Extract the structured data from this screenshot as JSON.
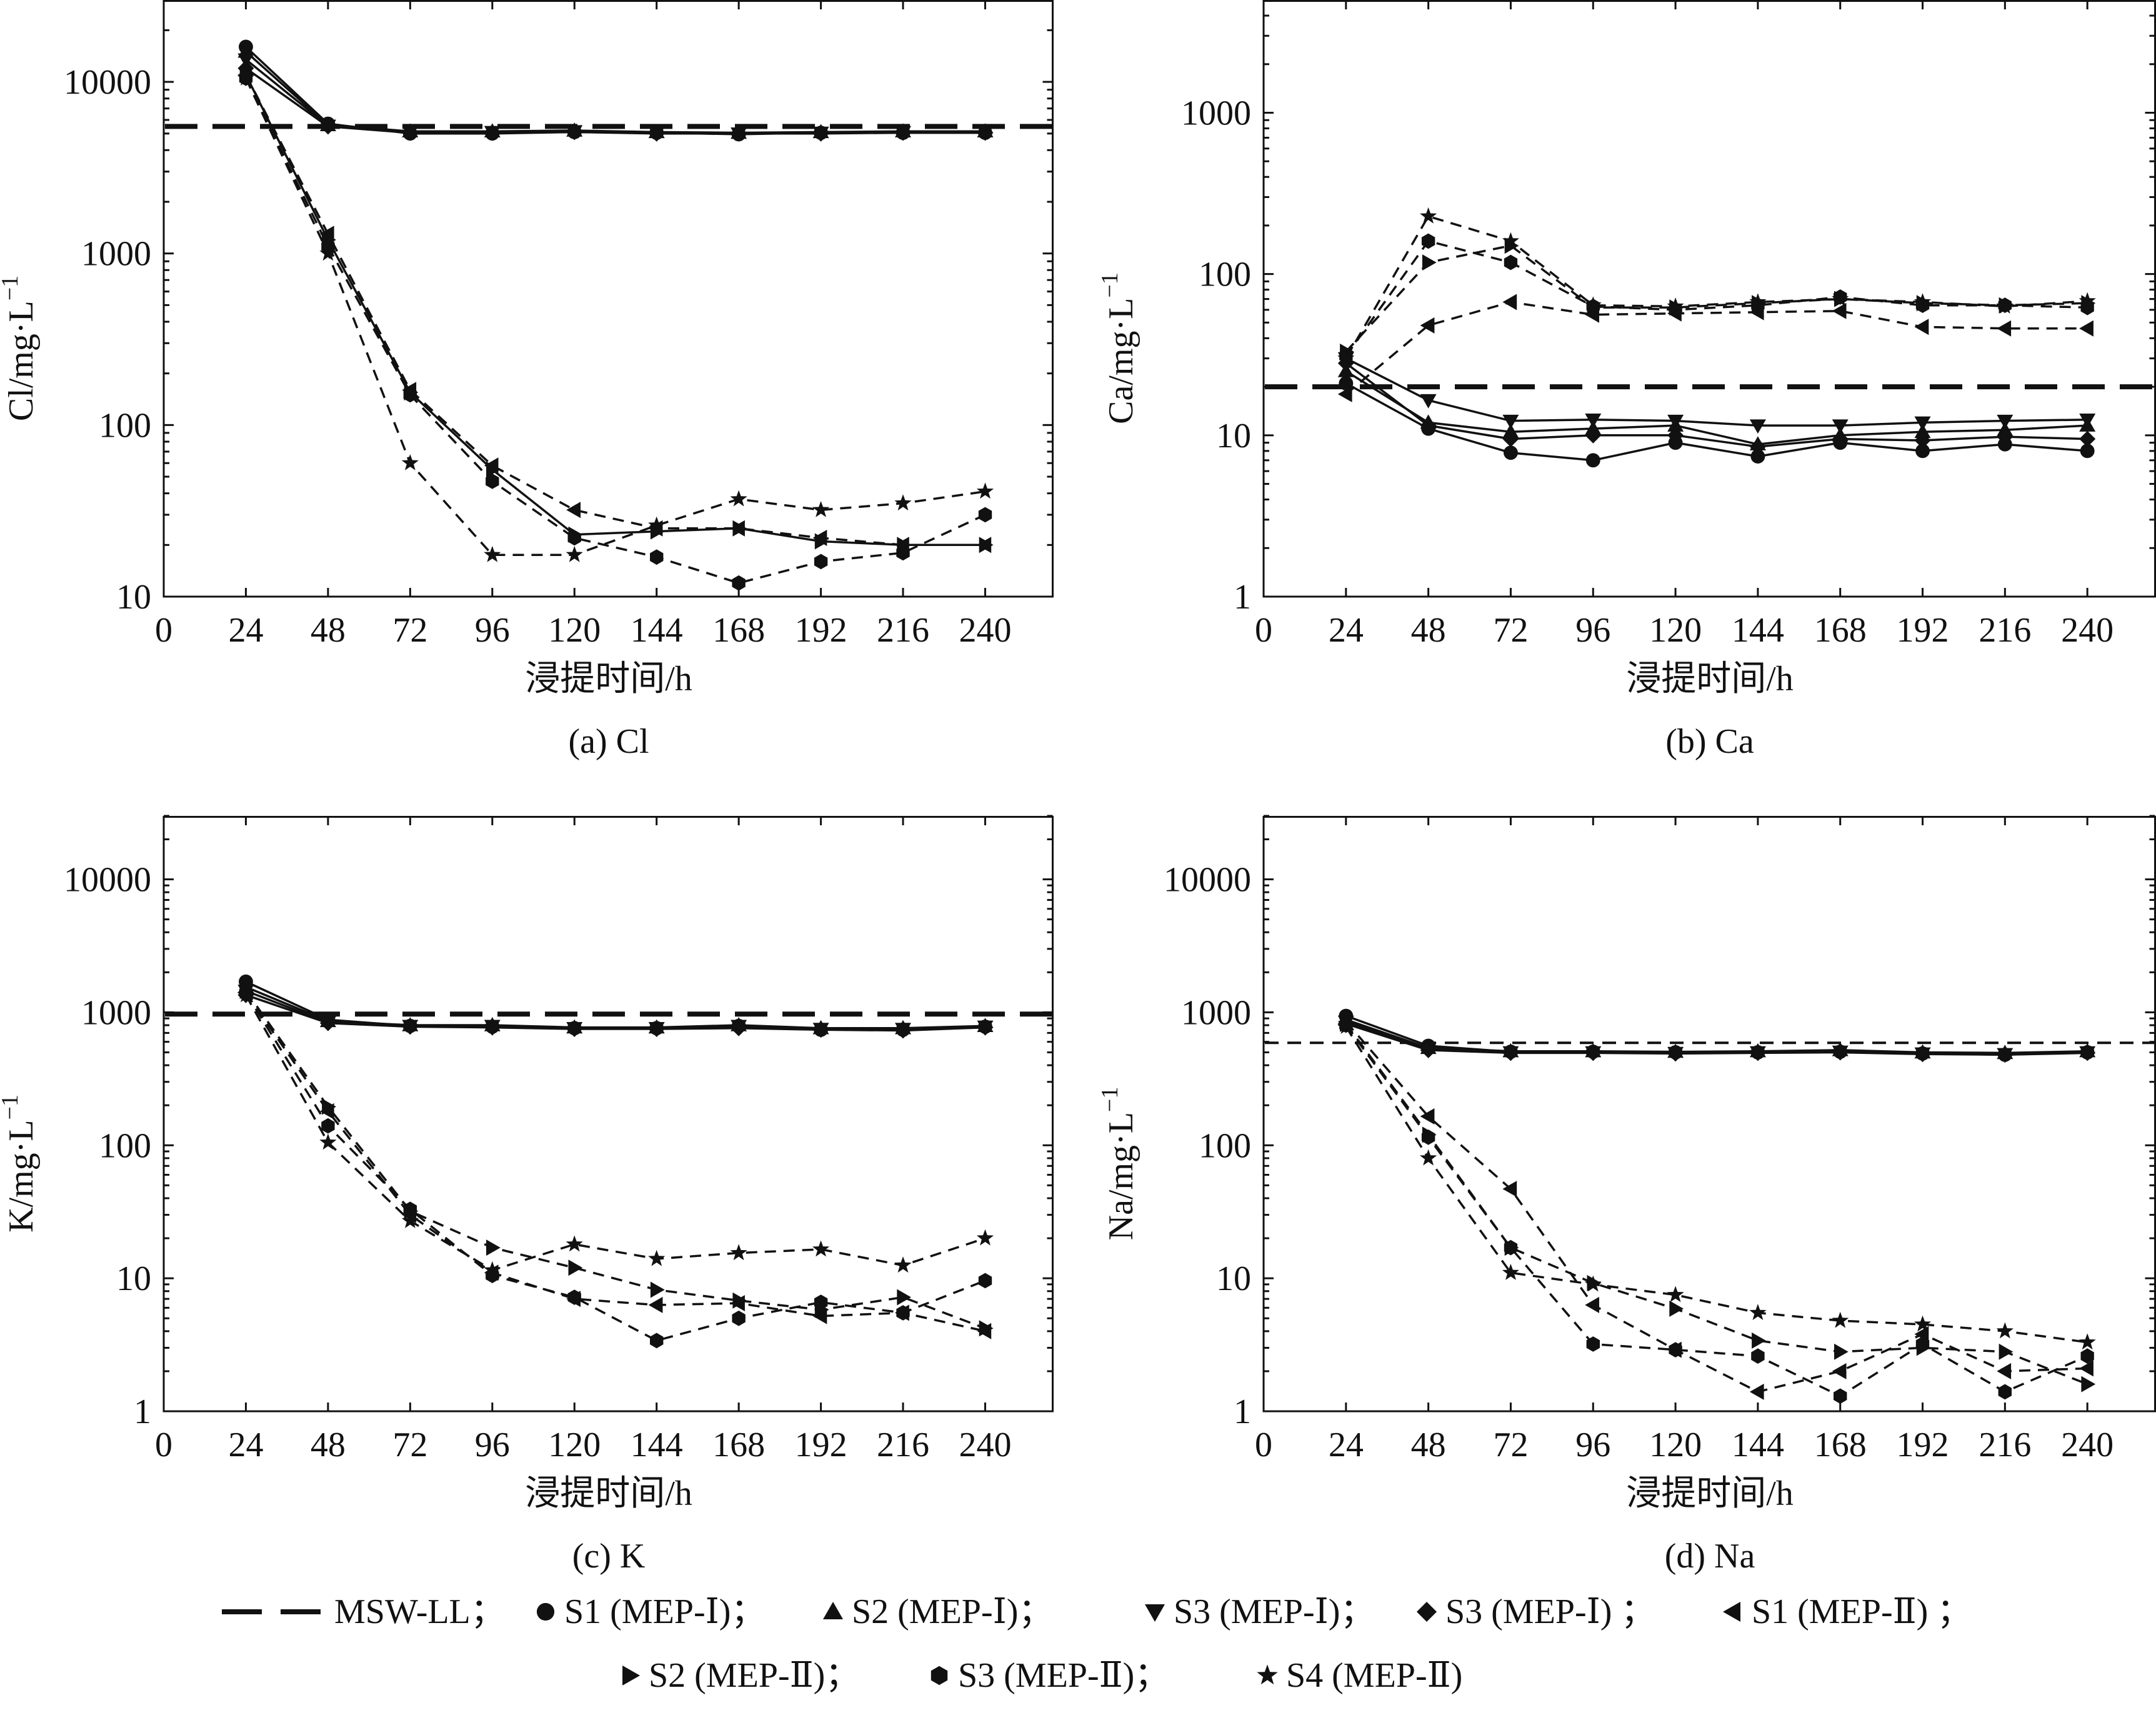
{
  "figure": {
    "legend": {
      "items": [
        {
          "label": "MSW-LL；",
          "marker": "dash"
        },
        {
          "label": "S1 (MEP-Ⅰ)；",
          "marker": "circle"
        },
        {
          "label": "S2 (MEP-Ⅰ)；",
          "marker": "triangle-up"
        },
        {
          "label": "S3 (MEP-Ⅰ)；",
          "marker": "triangle-down"
        },
        {
          "label": "S3 (MEP-Ⅰ) ；",
          "marker": "diamond"
        },
        {
          "label": "S1 (MEP-Ⅱ) ；",
          "marker": "triangle-left"
        },
        {
          "label": "S2 (MEP-Ⅱ)；",
          "marker": "triangle-right"
        },
        {
          "label": "S3 (MEP-Ⅱ)；",
          "marker": "hexagon"
        },
        {
          "label": "S4 (MEP-Ⅱ)",
          "marker": "star"
        }
      ]
    }
  },
  "chart_data": [
    {
      "type": "line",
      "caption": "(a) Cl",
      "xlabel": "浸提时间/h",
      "ylabel": "Cl/mg·L",
      "ylabel_sup": "−1",
      "xlim": [
        0,
        260
      ],
      "xticks": [
        0,
        24,
        48,
        72,
        96,
        120,
        144,
        168,
        192,
        216,
        240
      ],
      "ylim": [
        10,
        30000
      ],
      "yscale": "log",
      "yticks": [
        10,
        100,
        1000,
        10000
      ],
      "reference": {
        "name": "MSW-LL",
        "value": 5500,
        "style": "bold-dash"
      },
      "x": [
        24,
        48,
        72,
        96,
        120,
        144,
        168,
        192,
        216,
        240
      ],
      "series": [
        {
          "name": "S1 (MEP-Ⅰ)",
          "marker": "circle",
          "line": "solid",
          "values": [
            16000,
            5700,
            5000,
            5000,
            5100,
            5050,
            4950,
            5050,
            5050,
            5050
          ]
        },
        {
          "name": "S2 (MEP-Ⅰ)",
          "marker": "triangle-up",
          "line": "solid",
          "values": [
            15000,
            5600,
            5150,
            5150,
            5200,
            5100,
            5050,
            5100,
            5150,
            5150
          ]
        },
        {
          "name": "S3 (MEP-Ⅰ)",
          "marker": "triangle-down",
          "line": "solid",
          "values": [
            13500,
            5550,
            5100,
            5100,
            5150,
            5050,
            5000,
            5050,
            5100,
            5100
          ]
        },
        {
          "name": "S3 (MEP-Ⅰ)",
          "marker": "diamond",
          "line": "solid",
          "values": [
            12000,
            5500,
            5050,
            5050,
            5100,
            5000,
            5000,
            5000,
            5050,
            5050
          ]
        },
        {
          "name": "S1 (MEP-Ⅱ)",
          "marker": "triangle-left",
          "line": "dashed",
          "values": [
            11000,
            1300,
            160,
            58,
            32,
            25,
            25,
            22,
            20,
            20
          ]
        },
        {
          "name": "S2 (MEP-Ⅱ)",
          "marker": "triangle-right",
          "line": "solid",
          "values": [
            11000,
            1200,
            155,
            55,
            23,
            24,
            25,
            21,
            20,
            20
          ]
        },
        {
          "name": "S3 (MEP-Ⅱ)",
          "marker": "hexagon",
          "line": "dashed",
          "values": [
            10500,
            1100,
            150,
            47,
            22,
            17,
            12,
            16,
            18,
            30
          ]
        },
        {
          "name": "S4 (MEP-Ⅱ)",
          "marker": "star",
          "line": "dashed",
          "values": [
            10500,
            1000,
            60,
            17.5,
            17.5,
            26,
            37,
            32,
            35,
            41
          ]
        }
      ]
    },
    {
      "type": "line",
      "caption": "(b) Ca",
      "xlabel": "浸提时间/h",
      "ylabel": "Ca/mg·L",
      "ylabel_sup": "−1",
      "xlim": [
        0,
        260
      ],
      "xticks": [
        0,
        24,
        48,
        72,
        96,
        120,
        144,
        168,
        192,
        216,
        240
      ],
      "ylim": [
        1,
        5000
      ],
      "yscale": "log",
      "yticks": [
        1,
        10,
        100,
        1000
      ],
      "reference": {
        "name": "MSW-LL",
        "value": 20,
        "style": "bold-dash"
      },
      "x": [
        24,
        48,
        72,
        96,
        120,
        144,
        168,
        192,
        216,
        240
      ],
      "series": [
        {
          "name": "S1 (MEP-Ⅰ)",
          "marker": "circle",
          "line": "solid",
          "values": [
            21,
            11,
            7.8,
            7.0,
            9.0,
            7.4,
            9.0,
            8.0,
            8.8,
            8.0
          ]
        },
        {
          "name": "S2 (MEP-Ⅰ)",
          "marker": "triangle-up",
          "line": "solid",
          "values": [
            25,
            12,
            10.5,
            11,
            11.5,
            8.8,
            10,
            10.5,
            10.8,
            11.5
          ]
        },
        {
          "name": "S3 (MEP-Ⅰ)",
          "marker": "triangle-down",
          "line": "solid",
          "values": [
            30,
            16.5,
            12.3,
            12.5,
            12.3,
            11.5,
            11.5,
            12,
            12.3,
            12.5
          ]
        },
        {
          "name": "S3 (MEP-Ⅰ)",
          "marker": "diamond",
          "line": "solid",
          "values": [
            28,
            11.5,
            9.5,
            10,
            10,
            8.5,
            9.5,
            9.3,
            9.8,
            9.5
          ]
        },
        {
          "name": "S1 (MEP-Ⅱ)",
          "marker": "triangle-left",
          "line": "dashed",
          "values": [
            18,
            48,
            67,
            56,
            57,
            58,
            59,
            47,
            46,
            46
          ]
        },
        {
          "name": "S2 (MEP-Ⅱ)",
          "marker": "triangle-right",
          "line": "dashed",
          "values": [
            33,
            118,
            150,
            62,
            62,
            66,
            70,
            66,
            64,
            66
          ]
        },
        {
          "name": "S3 (MEP-Ⅱ)",
          "marker": "hexagon",
          "line": "dashed",
          "values": [
            31,
            160,
            118,
            63,
            60,
            64,
            72,
            64,
            64,
            62
          ]
        },
        {
          "name": "S4 (MEP-Ⅱ)",
          "marker": "star",
          "line": "dashed",
          "values": [
            30,
            228,
            160,
            64,
            63,
            67,
            70,
            67,
            63,
            68
          ]
        }
      ]
    },
    {
      "type": "line",
      "caption": "(c) K",
      "xlabel": "浸提时间/h",
      "ylabel": "K/mg·L",
      "ylabel_sup": "−1",
      "xlim": [
        0,
        260
      ],
      "xticks": [
        0,
        24,
        48,
        72,
        96,
        120,
        144,
        168,
        192,
        216,
        240
      ],
      "ylim": [
        1,
        30000
      ],
      "yscale": "log",
      "yticks": [
        1,
        10,
        100,
        1000,
        10000
      ],
      "reference": {
        "name": "MSW-LL",
        "value": 970,
        "style": "bold-dash"
      },
      "x": [
        24,
        48,
        72,
        96,
        120,
        144,
        168,
        192,
        216,
        240
      ],
      "series": [
        {
          "name": "S1 (MEP-Ⅰ)",
          "marker": "circle",
          "line": "solid",
          "values": [
            1700,
            880,
            790,
            780,
            760,
            760,
            790,
            740,
            740,
            780
          ]
        },
        {
          "name": "S2 (MEP-Ⅰ)",
          "marker": "triangle-up",
          "line": "solid",
          "values": [
            1550,
            860,
            800,
            800,
            770,
            770,
            800,
            760,
            760,
            790
          ]
        },
        {
          "name": "S3 (MEP-Ⅰ)",
          "marker": "triangle-down",
          "line": "solid",
          "values": [
            1450,
            840,
            790,
            790,
            760,
            760,
            790,
            750,
            750,
            780
          ]
        },
        {
          "name": "S3 (MEP-Ⅰ)",
          "marker": "diamond",
          "line": "solid",
          "values": [
            1350,
            830,
            780,
            770,
            750,
            750,
            760,
            740,
            730,
            770
          ]
        },
        {
          "name": "S1 (MEP-Ⅱ)",
          "marker": "triangle-left",
          "line": "dashed",
          "values": [
            1400,
            180,
            30,
            11,
            7,
            6.3,
            6.5,
            5.2,
            5.5,
            4.0
          ]
        },
        {
          "name": "S2 (MEP-Ⅱ)",
          "marker": "triangle-right",
          "line": "dashed",
          "values": [
            1450,
            195,
            32,
            17,
            12,
            8.2,
            6.8,
            5.8,
            7.2,
            4.2
          ]
        },
        {
          "name": "S3 (MEP-Ⅱ)",
          "marker": "hexagon",
          "line": "dashed",
          "values": [
            1400,
            140,
            33,
            10.5,
            7.2,
            3.4,
            5.0,
            6.6,
            5.5,
            9.6
          ]
        },
        {
          "name": "S4 (MEP-Ⅱ)",
          "marker": "star",
          "line": "dashed",
          "values": [
            1350,
            105,
            27,
            11.5,
            18,
            14,
            15.5,
            16.5,
            12.5,
            20
          ]
        }
      ]
    },
    {
      "type": "line",
      "caption": "(d) Na",
      "xlabel": "浸提时间/h",
      "ylabel": "Na/mg·L",
      "ylabel_sup": "−1",
      "xlim": [
        0,
        260
      ],
      "xticks": [
        0,
        24,
        48,
        72,
        96,
        120,
        144,
        168,
        192,
        216,
        240
      ],
      "ylim": [
        1,
        30000
      ],
      "yscale": "log",
      "yticks": [
        1,
        10,
        100,
        1000,
        10000
      ],
      "reference": {
        "name": "MSW-LL",
        "value": 590,
        "style": "dash"
      },
      "x": [
        24,
        48,
        72,
        96,
        120,
        144,
        168,
        192,
        216,
        240
      ],
      "series": [
        {
          "name": "S1 (MEP-Ⅰ)",
          "marker": "circle",
          "line": "solid",
          "values": [
            940,
            560,
            505,
            505,
            500,
            500,
            505,
            490,
            480,
            500
          ]
        },
        {
          "name": "S2 (MEP-Ⅰ)",
          "marker": "triangle-up",
          "line": "solid",
          "values": [
            880,
            540,
            510,
            510,
            505,
            510,
            520,
            500,
            495,
            510
          ]
        },
        {
          "name": "S3 (MEP-Ⅰ)",
          "marker": "triangle-down",
          "line": "solid",
          "values": [
            850,
            530,
            500,
            500,
            495,
            500,
            505,
            490,
            485,
            500
          ]
        },
        {
          "name": "S3 (MEP-Ⅰ)",
          "marker": "diamond",
          "line": "solid",
          "values": [
            820,
            520,
            495,
            495,
            490,
            495,
            500,
            485,
            480,
            495
          ]
        },
        {
          "name": "S1 (MEP-Ⅱ)",
          "marker": "triangle-left",
          "line": "dashed",
          "values": [
            850,
            165,
            47,
            6.3,
            2.9,
            1.4,
            2.0,
            3.8,
            2.0,
            2.1
          ]
        },
        {
          "name": "S2 (MEP-Ⅱ)",
          "marker": "triangle-right",
          "line": "dashed",
          "values": [
            820,
            120,
            17,
            9.2,
            5.9,
            3.4,
            2.8,
            3.0,
            2.8,
            1.6
          ]
        },
        {
          "name": "S3 (MEP-Ⅱ)",
          "marker": "hexagon",
          "line": "dashed",
          "values": [
            800,
            115,
            17,
            3.2,
            2.9,
            2.6,
            1.3,
            3.2,
            1.4,
            2.6
          ]
        },
        {
          "name": "S4 (MEP-Ⅱ)",
          "marker": "star",
          "line": "dashed",
          "values": [
            780,
            80,
            11,
            9.0,
            7.5,
            5.5,
            4.8,
            4.5,
            4.0,
            3.3
          ]
        }
      ]
    }
  ]
}
